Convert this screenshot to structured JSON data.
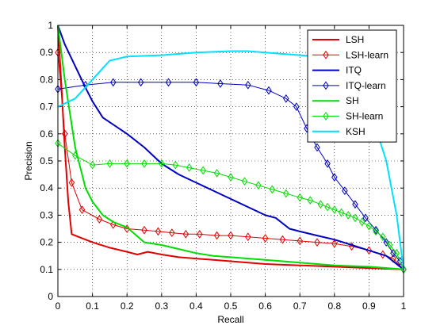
{
  "chart_data": {
    "type": "line",
    "xlabel": "Recall",
    "ylabel": "Precision",
    "xlim": [
      0,
      1
    ],
    "ylim": [
      0,
      1
    ],
    "xticks": [
      "0",
      "0.1",
      "0.2",
      "0.3",
      "0.4",
      "0.5",
      "0.6",
      "0.7",
      "0.8",
      "0.9",
      "1"
    ],
    "yticks": [
      "0",
      "0.1",
      "0.2",
      "0.3",
      "0.4",
      "0.5",
      "0.6",
      "0.7",
      "0.8",
      "0.9",
      "1"
    ],
    "grid": true,
    "legend_position": "top-right",
    "series": [
      {
        "name": "LSH",
        "color": "#e00000",
        "marker": "none",
        "width": 2,
        "x": [
          0.0,
          0.01,
          0.02,
          0.03,
          0.04,
          0.06,
          0.08,
          0.1,
          0.15,
          0.2,
          0.23,
          0.26,
          0.3,
          0.35,
          0.4,
          0.45,
          0.5,
          0.6,
          0.7,
          0.8,
          0.9,
          1.0
        ],
        "y": [
          1.0,
          0.78,
          0.55,
          0.35,
          0.23,
          0.22,
          0.21,
          0.2,
          0.18,
          0.165,
          0.155,
          0.165,
          0.155,
          0.145,
          0.14,
          0.135,
          0.13,
          0.12,
          0.115,
          0.11,
          0.105,
          0.1
        ]
      },
      {
        "name": "LSH-learn",
        "color": "#e00000",
        "marker": "diamond",
        "width": 1,
        "x": [
          0.0,
          0.02,
          0.04,
          0.07,
          0.12,
          0.16,
          0.2,
          0.25,
          0.29,
          0.33,
          0.37,
          0.41,
          0.46,
          0.5,
          0.55,
          0.6,
          0.65,
          0.7,
          0.75,
          0.8,
          0.85,
          0.9,
          0.94,
          0.97,
          1.0
        ],
        "y": [
          0.9,
          0.6,
          0.42,
          0.32,
          0.285,
          0.265,
          0.25,
          0.245,
          0.24,
          0.235,
          0.23,
          0.23,
          0.225,
          0.225,
          0.22,
          0.215,
          0.21,
          0.205,
          0.2,
          0.195,
          0.185,
          0.17,
          0.155,
          0.14,
          0.1
        ]
      },
      {
        "name": "ITQ",
        "color": "#0000c0",
        "marker": "none",
        "width": 2,
        "x": [
          0.0,
          0.02,
          0.05,
          0.08,
          0.1,
          0.13,
          0.2,
          0.25,
          0.3,
          0.35,
          0.4,
          0.45,
          0.5,
          0.55,
          0.6,
          0.63,
          0.67,
          0.7,
          0.75,
          0.8,
          0.85,
          0.9,
          0.95,
          1.0
        ],
        "y": [
          1.0,
          0.93,
          0.85,
          0.77,
          0.72,
          0.66,
          0.6,
          0.55,
          0.49,
          0.45,
          0.42,
          0.39,
          0.36,
          0.33,
          0.3,
          0.29,
          0.25,
          0.24,
          0.225,
          0.21,
          0.19,
          0.17,
          0.15,
          0.1
        ]
      },
      {
        "name": "ITQ-learn",
        "color": "#0000c0",
        "marker": "diamond",
        "width": 1,
        "x": [
          0.0,
          0.08,
          0.16,
          0.24,
          0.32,
          0.4,
          0.47,
          0.55,
          0.61,
          0.66,
          0.69,
          0.72,
          0.75,
          0.78,
          0.8,
          0.83,
          0.86,
          0.89,
          0.92,
          0.95,
          0.97,
          0.99,
          1.0
        ],
        "y": [
          0.765,
          0.78,
          0.79,
          0.79,
          0.79,
          0.79,
          0.785,
          0.78,
          0.76,
          0.73,
          0.7,
          0.62,
          0.55,
          0.49,
          0.44,
          0.39,
          0.34,
          0.29,
          0.245,
          0.2,
          0.16,
          0.13,
          0.1
        ]
      },
      {
        "name": "SH",
        "color": "#00dd00",
        "marker": "none",
        "width": 2,
        "x": [
          0.0,
          0.02,
          0.05,
          0.08,
          0.1,
          0.13,
          0.16,
          0.2,
          0.25,
          0.3,
          0.35,
          0.4,
          0.45,
          0.5,
          0.6,
          0.7,
          0.8,
          0.9,
          1.0
        ],
        "y": [
          1.0,
          0.8,
          0.55,
          0.4,
          0.35,
          0.3,
          0.275,
          0.255,
          0.2,
          0.19,
          0.175,
          0.16,
          0.15,
          0.145,
          0.135,
          0.125,
          0.115,
          0.11,
          0.1
        ]
      },
      {
        "name": "SH-learn",
        "color": "#00dd00",
        "marker": "diamond",
        "width": 1,
        "x": [
          0.0,
          0.05,
          0.1,
          0.15,
          0.2,
          0.25,
          0.3,
          0.34,
          0.38,
          0.42,
          0.46,
          0.5,
          0.54,
          0.58,
          0.62,
          0.66,
          0.7,
          0.73,
          0.76,
          0.78,
          0.8,
          0.82,
          0.84,
          0.86,
          0.88,
          0.9,
          0.92,
          0.94,
          0.96,
          0.98,
          1.0
        ],
        "y": [
          0.565,
          0.52,
          0.485,
          0.49,
          0.49,
          0.49,
          0.49,
          0.485,
          0.475,
          0.465,
          0.455,
          0.44,
          0.425,
          0.41,
          0.395,
          0.38,
          0.365,
          0.355,
          0.34,
          0.33,
          0.32,
          0.31,
          0.3,
          0.29,
          0.275,
          0.26,
          0.24,
          0.22,
          0.19,
          0.16,
          0.1
        ]
      },
      {
        "name": "KSH",
        "color": "#00e0ff",
        "marker": "none",
        "width": 2,
        "x": [
          0.0,
          0.05,
          0.1,
          0.15,
          0.2,
          0.3,
          0.4,
          0.5,
          0.55,
          0.6,
          0.7,
          0.8,
          0.85,
          0.9,
          0.95,
          0.98,
          1.0
        ],
        "y": [
          0.7,
          0.73,
          0.8,
          0.87,
          0.885,
          0.89,
          0.9,
          0.905,
          0.905,
          0.9,
          0.89,
          0.88,
          0.82,
          0.7,
          0.5,
          0.3,
          0.1
        ]
      }
    ]
  }
}
